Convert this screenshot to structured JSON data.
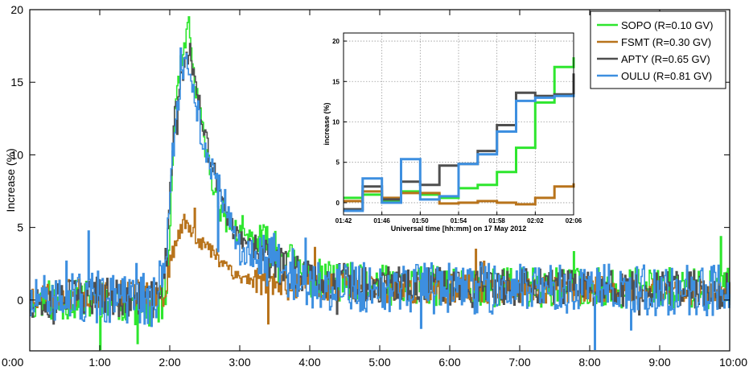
{
  "chart_data": [
    {
      "type": "line",
      "step": true,
      "ylabel": "Increase (%)",
      "xlabel": "",
      "x_ticks": [
        "0:00",
        "1:00",
        "2:00",
        "3:00",
        "4:00",
        "5:00",
        "6:00",
        "7:00",
        "8:00",
        "9:00",
        "10:00"
      ],
      "xlim_hours": [
        0,
        10
      ],
      "ylim": [
        -3.5,
        20
      ],
      "y_ticks": [
        0,
        5,
        10,
        15,
        20
      ],
      "grid": false,
      "legend": "top-right",
      "series": [
        {
          "name": "SOPO (R=0.10 GV)",
          "color": "#2ee62e",
          "keyframes": [
            [
              0,
              0
            ],
            [
              1,
              0
            ],
            [
              1.8,
              -0.5
            ],
            [
              1.95,
              0.5
            ],
            [
              2.0,
              5
            ],
            [
              2.05,
              12
            ],
            [
              2.15,
              16
            ],
            [
              2.22,
              17.5
            ],
            [
              2.27,
              19
            ],
            [
              2.32,
              16
            ],
            [
              2.45,
              12
            ],
            [
              2.6,
              8
            ],
            [
              2.8,
              5.5
            ],
            [
              3.0,
              4.5
            ],
            [
              3.3,
              4
            ],
            [
              3.6,
              3
            ],
            [
              4.0,
              1.5
            ],
            [
              5,
              1
            ],
            [
              10,
              0.8
            ]
          ],
          "noise": 1.4,
          "seed": 11
        },
        {
          "name": "FSMT (R=0.30 GV)",
          "color": "#b8731b",
          "keyframes": [
            [
              0,
              0.3
            ],
            [
              1,
              0.5
            ],
            [
              1.9,
              0.5
            ],
            [
              2.0,
              2.5
            ],
            [
              2.1,
              4.5
            ],
            [
              2.2,
              5.5
            ],
            [
              2.35,
              4.5
            ],
            [
              2.55,
              3.5
            ],
            [
              2.8,
              2.5
            ],
            [
              3.0,
              1.5
            ],
            [
              3.5,
              1.2
            ],
            [
              4.0,
              1
            ],
            [
              5,
              0.8
            ],
            [
              10,
              0.6
            ]
          ],
          "noise": 1.0,
          "seed": 23
        },
        {
          "name": "APTY (R=0.65 GV)",
          "color": "#4f4f4f",
          "keyframes": [
            [
              0,
              0
            ],
            [
              1,
              0.3
            ],
            [
              1.8,
              0
            ],
            [
              1.95,
              3
            ],
            [
              2.05,
              12
            ],
            [
              2.15,
              15.5
            ],
            [
              2.28,
              17
            ],
            [
              2.4,
              14
            ],
            [
              2.55,
              10
            ],
            [
              2.8,
              6
            ],
            [
              3.0,
              4
            ],
            [
              3.5,
              2.5
            ],
            [
              4.0,
              1.5
            ],
            [
              5,
              1
            ],
            [
              10,
              0.7
            ]
          ],
          "noise": 1.3,
          "seed": 37
        },
        {
          "name": "OULU (R=0.81 GV)",
          "color": "#3d8fe0",
          "keyframes": [
            [
              0,
              -0.2
            ],
            [
              1,
              0.2
            ],
            [
              1.8,
              0
            ],
            [
              1.95,
              4
            ],
            [
              2.05,
              11
            ],
            [
              2.15,
              15
            ],
            [
              2.25,
              16.5
            ],
            [
              2.35,
              14
            ],
            [
              2.5,
              10
            ],
            [
              2.8,
              6.5
            ],
            [
              3.0,
              3.5
            ],
            [
              3.5,
              2.5
            ],
            [
              4.0,
              1
            ],
            [
              5,
              0.8
            ],
            [
              10,
              0.7
            ]
          ],
          "noise": 1.8,
          "seed": 51
        }
      ]
    },
    {
      "type": "line",
      "step": true,
      "xlabel": "Universal time [hh:mm] on 17 May 2012",
      "ylabel": "increase (%)",
      "x_ticks": [
        "01:42",
        "01:46",
        "01:50",
        "01:54",
        "01:58",
        "02:02",
        "02:06"
      ],
      "xlim_minutes": [
        102,
        126
      ],
      "ylim": [
        -1.5,
        21
      ],
      "y_ticks": [
        0,
        5,
        10,
        15,
        20
      ],
      "grid": true,
      "series": [
        {
          "name": "SOPO (R=0.10 GV)",
          "color": "#2ee62e",
          "x_minutes": [
            102,
            104,
            106,
            108,
            110,
            112,
            114,
            116,
            118,
            120,
            122,
            124,
            126
          ],
          "values": [
            0.6,
            1.0,
            0.2,
            1.4,
            1.0,
            0.6,
            1.8,
            2.2,
            3.8,
            6.8,
            12.4,
            16.8,
            18.0
          ]
        },
        {
          "name": "FSMT (R=0.30 GV)",
          "color": "#b8731b",
          "x_minutes": [
            102,
            104,
            106,
            108,
            110,
            112,
            114,
            116,
            118,
            120,
            122,
            124,
            126
          ],
          "values": [
            0.2,
            1.4,
            0.6,
            1.2,
            1.2,
            -0.1,
            0.0,
            0.2,
            0.0,
            -0.2,
            0.6,
            2.0,
            2.4
          ]
        },
        {
          "name": "APTY (R=0.65 GV)",
          "color": "#4f4f4f",
          "x_minutes": [
            102,
            104,
            106,
            108,
            110,
            112,
            114,
            116,
            118,
            120,
            122,
            124,
            126
          ],
          "values": [
            -0.8,
            2.0,
            0.4,
            2.6,
            2.2,
            4.6,
            4.8,
            6.4,
            9.6,
            13.6,
            13.2,
            13.4,
            16.0
          ]
        },
        {
          "name": "OULU (R=0.81 GV)",
          "color": "#3d8fe0",
          "x_minutes": [
            102,
            104,
            106,
            108,
            110,
            112,
            114,
            116,
            118,
            120,
            122,
            124,
            126
          ],
          "values": [
            -1.0,
            3.0,
            0.0,
            5.4,
            0.4,
            0.8,
            4.8,
            6.0,
            8.8,
            12.6,
            13.0,
            13.2,
            13.4
          ]
        }
      ]
    }
  ]
}
